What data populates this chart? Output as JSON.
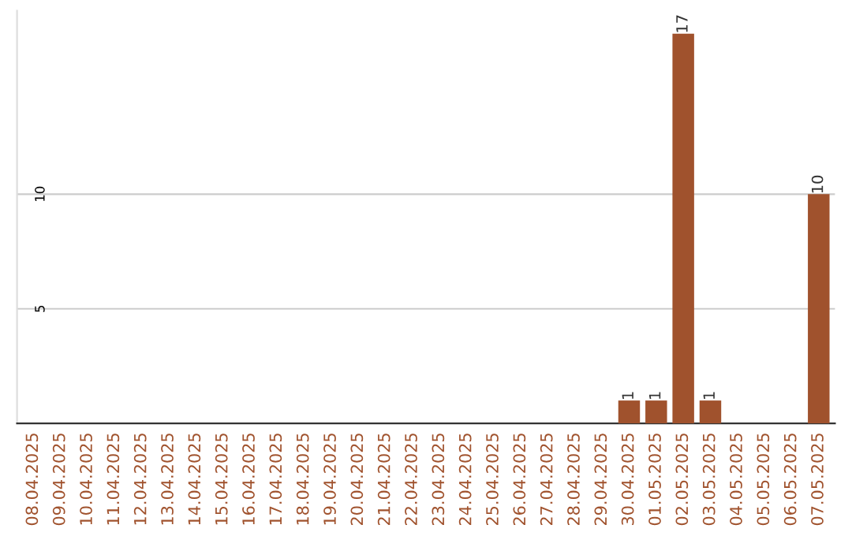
{
  "chart_data": {
    "type": "bar",
    "categories": [
      "08.04.2025",
      "09.04.2025",
      "10.04.2025",
      "11.04.2025",
      "12.04.2025",
      "13.04.2025",
      "14.04.2025",
      "15.04.2025",
      "16.04.2025",
      "17.04.2025",
      "18.04.2025",
      "19.04.2025",
      "20.04.2025",
      "21.04.2025",
      "22.04.2025",
      "23.04.2025",
      "24.04.2025",
      "25.04.2025",
      "26.04.2025",
      "27.04.2025",
      "28.04.2025",
      "29.04.2025",
      "30.04.2025",
      "01.05.2025",
      "02.05.2025",
      "03.05.2025",
      "04.05.2025",
      "05.05.2025",
      "06.05.2025",
      "07.05.2025"
    ],
    "values": [
      0,
      0,
      0,
      0,
      0,
      0,
      0,
      0,
      0,
      0,
      0,
      0,
      0,
      0,
      0,
      0,
      0,
      0,
      0,
      0,
      0,
      0,
      1,
      1,
      17,
      1,
      0,
      0,
      0,
      10
    ],
    "value_labels": [
      null,
      null,
      null,
      null,
      null,
      null,
      null,
      null,
      null,
      null,
      null,
      null,
      null,
      null,
      null,
      null,
      null,
      null,
      null,
      null,
      null,
      null,
      "1",
      "1",
      "17",
      "1",
      null,
      null,
      null,
      "10"
    ],
    "color": "#a0522d",
    "ylim": [
      0,
      18
    ],
    "yticks": [
      5,
      10
    ],
    "grid": "y"
  }
}
